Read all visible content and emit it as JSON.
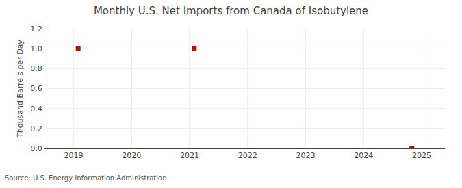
{
  "chart_data": {
    "type": "scatter",
    "title": "Monthly U.S. Net Imports from Canada of Isobutylene",
    "ylabel": "Thousand Barrels per Day",
    "source": "Source: U.S. Energy Information Administration",
    "x": [
      2019.08,
      2021.08,
      2024.83
    ],
    "values": [
      1.0,
      1.0,
      0.0
    ],
    "color": "#cc0000",
    "marker": "square",
    "xlim": [
      2018.5,
      2025.4
    ],
    "xticks": [
      2019,
      2020,
      2021,
      2022,
      2023,
      2024,
      2025
    ],
    "ylim": [
      0.0,
      1.2
    ],
    "yticks": [
      {
        "value": 0.0,
        "label": "0.0"
      },
      0.2,
      0.4,
      0.6,
      0.8,
      {
        "value": 1.0,
        "label": "1.0"
      },
      1.2
    ],
    "grid": true
  }
}
